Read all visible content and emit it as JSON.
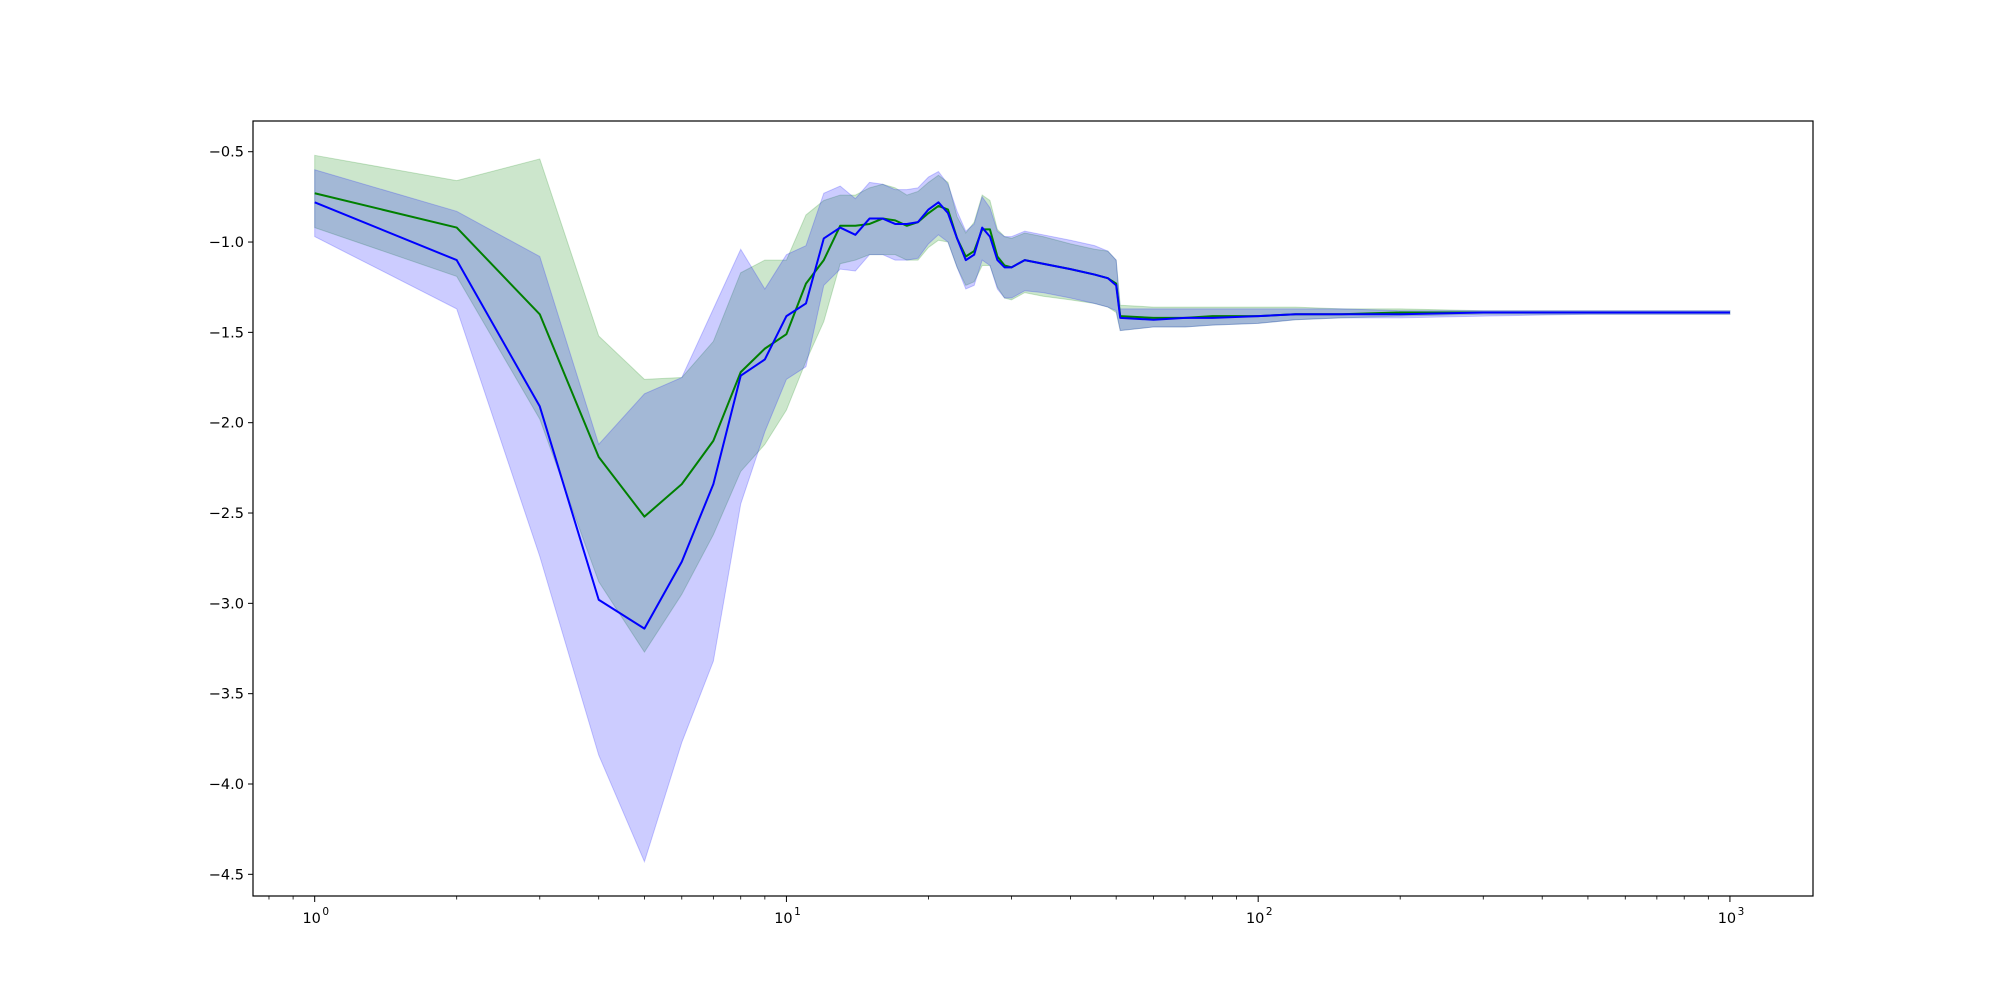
{
  "chart_data": {
    "type": "line",
    "xscale": "log",
    "xlim": [
      0.74,
      1500
    ],
    "ylim": [
      -4.62,
      -0.33
    ],
    "grid": false,
    "legend": "none",
    "title": "",
    "xlabel": "",
    "ylabel": "",
    "yticks": [
      -0.5,
      -1.0,
      -1.5,
      -2.0,
      -2.5,
      -3.0,
      -3.5,
      -4.0,
      -4.5
    ],
    "ytick_labels": [
      "−0.5",
      "−1.0",
      "−1.5",
      "−2.0",
      "−2.5",
      "−3.0",
      "−3.5",
      "−4.0",
      "−4.5"
    ],
    "xticks": [
      1,
      10,
      100,
      1000
    ],
    "xtick_labels": [
      {
        "base": "10",
        "exp": "0"
      },
      {
        "base": "10",
        "exp": "1"
      },
      {
        "base": "10",
        "exp": "2"
      },
      {
        "base": "10",
        "exp": "3"
      }
    ],
    "series": [
      {
        "color": "#008000",
        "band_color": "#008000",
        "band_opacity": 0.2,
        "x": [
          1,
          2,
          3,
          4,
          5,
          6,
          7,
          8,
          9,
          10,
          11,
          12,
          13,
          14,
          15,
          16,
          17,
          18,
          19,
          20,
          21,
          22,
          23,
          24,
          25,
          26,
          27,
          28,
          29,
          30,
          32,
          35,
          40,
          45,
          48,
          50,
          51,
          60,
          70,
          80,
          100,
          120,
          150,
          200,
          300,
          500,
          1000
        ],
        "y": [
          -0.73,
          -0.92,
          -1.4,
          -2.19,
          -2.52,
          -2.34,
          -2.1,
          -1.72,
          -1.59,
          -1.51,
          -1.23,
          -1.1,
          -0.91,
          -0.91,
          -0.9,
          -0.87,
          -0.88,
          -0.91,
          -0.89,
          -0.84,
          -0.8,
          -0.82,
          -0.98,
          -1.08,
          -1.05,
          -0.93,
          -0.93,
          -1.08,
          -1.13,
          -1.14,
          -1.1,
          -1.12,
          -1.15,
          -1.18,
          -1.2,
          -1.23,
          -1.41,
          -1.42,
          -1.42,
          -1.41,
          -1.41,
          -1.4,
          -1.4,
          -1.39,
          -1.39,
          -1.39,
          -1.39
        ],
        "upper": [
          -0.52,
          -0.66,
          -0.54,
          -1.52,
          -1.76,
          -1.75,
          -1.55,
          -1.17,
          -1.1,
          -1.1,
          -0.85,
          -0.77,
          -0.74,
          -0.74,
          -0.7,
          -0.68,
          -0.7,
          -0.74,
          -0.72,
          -0.67,
          -0.63,
          -0.67,
          -0.86,
          -0.95,
          -0.89,
          -0.74,
          -0.77,
          -0.93,
          -0.97,
          -0.98,
          -0.95,
          -0.97,
          -1.01,
          -1.04,
          -1.05,
          -1.1,
          -1.35,
          -1.36,
          -1.36,
          -1.36,
          -1.36,
          -1.36,
          -1.37,
          -1.37,
          -1.38,
          -1.38,
          -1.38
        ],
        "lower": [
          -0.92,
          -1.19,
          -1.98,
          -2.88,
          -3.27,
          -2.95,
          -2.62,
          -2.27,
          -2.12,
          -1.93,
          -1.66,
          -1.44,
          -1.12,
          -1.1,
          -1.07,
          -1.07,
          -1.07,
          -1.1,
          -1.1,
          -1.03,
          -0.99,
          -1.0,
          -1.14,
          -1.24,
          -1.22,
          -1.13,
          -1.13,
          -1.25,
          -1.31,
          -1.32,
          -1.28,
          -1.3,
          -1.32,
          -1.34,
          -1.36,
          -1.39,
          -1.49,
          -1.47,
          -1.47,
          -1.46,
          -1.45,
          -1.43,
          -1.42,
          -1.41,
          -1.4,
          -1.4,
          -1.4
        ]
      },
      {
        "color": "#0000ff",
        "band_color": "#0000ff",
        "band_opacity": 0.2,
        "x": [
          1,
          2,
          3,
          4,
          5,
          6,
          7,
          8,
          9,
          10,
          11,
          12,
          13,
          14,
          15,
          16,
          17,
          18,
          19,
          20,
          21,
          22,
          23,
          24,
          25,
          26,
          27,
          28,
          29,
          30,
          32,
          35,
          40,
          45,
          48,
          50,
          51,
          60,
          70,
          80,
          100,
          120,
          150,
          200,
          300,
          500,
          1000
        ],
        "y": [
          -0.78,
          -1.1,
          -1.91,
          -2.98,
          -3.14,
          -2.77,
          -2.34,
          -1.74,
          -1.65,
          -1.41,
          -1.34,
          -0.98,
          -0.92,
          -0.96,
          -0.87,
          -0.87,
          -0.9,
          -0.9,
          -0.89,
          -0.82,
          -0.78,
          -0.84,
          -0.98,
          -1.1,
          -1.07,
          -0.92,
          -0.97,
          -1.1,
          -1.14,
          -1.14,
          -1.1,
          -1.12,
          -1.15,
          -1.18,
          -1.2,
          -1.24,
          -1.42,
          -1.43,
          -1.42,
          -1.42,
          -1.41,
          -1.4,
          -1.4,
          -1.4,
          -1.39,
          -1.39,
          -1.39
        ],
        "upper": [
          -0.6,
          -0.83,
          -1.08,
          -2.12,
          -1.84,
          -1.75,
          -1.37,
          -1.04,
          -1.26,
          -1.07,
          -1.02,
          -0.73,
          -0.69,
          -0.76,
          -0.67,
          -0.68,
          -0.71,
          -0.71,
          -0.7,
          -0.64,
          -0.61,
          -0.68,
          -0.83,
          -0.94,
          -0.9,
          -0.75,
          -0.81,
          -0.94,
          -0.97,
          -0.97,
          -0.94,
          -0.96,
          -0.99,
          -1.02,
          -1.05,
          -1.1,
          -1.37,
          -1.37,
          -1.37,
          -1.37,
          -1.37,
          -1.37,
          -1.37,
          -1.38,
          -1.38,
          -1.38,
          -1.38
        ],
        "lower": [
          -0.97,
          -1.37,
          -2.74,
          -3.84,
          -4.43,
          -3.77,
          -3.32,
          -2.45,
          -2.05,
          -1.76,
          -1.69,
          -1.24,
          -1.15,
          -1.16,
          -1.07,
          -1.07,
          -1.1,
          -1.1,
          -1.09,
          -1.01,
          -0.96,
          -1.0,
          -1.14,
          -1.26,
          -1.24,
          -1.1,
          -1.13,
          -1.26,
          -1.31,
          -1.31,
          -1.27,
          -1.28,
          -1.31,
          -1.34,
          -1.36,
          -1.38,
          -1.49,
          -1.47,
          -1.47,
          -1.46,
          -1.45,
          -1.43,
          -1.42,
          -1.42,
          -1.41,
          -1.4,
          -1.4
        ]
      }
    ]
  }
}
